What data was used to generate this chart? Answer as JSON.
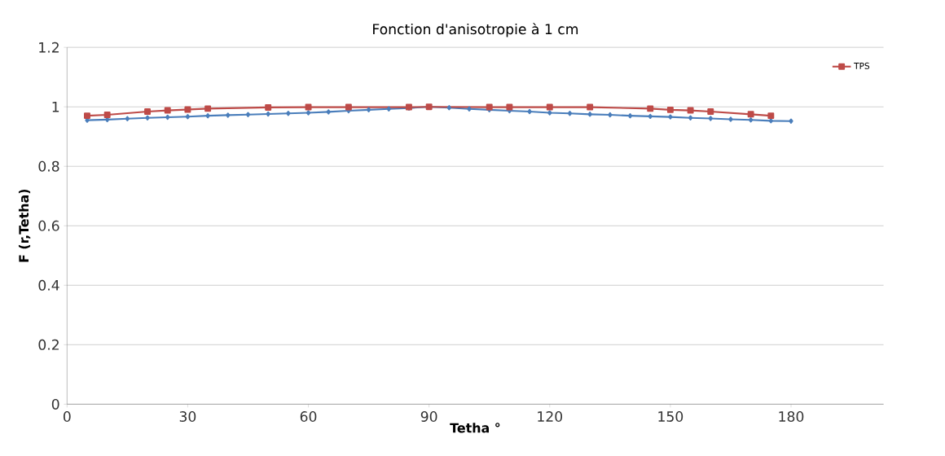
{
  "chart_data": {
    "type": "line",
    "title": "Fonction d'anisotropie à 1 cm",
    "xlabel": "Tetha °",
    "ylabel": "F (r,Tetha)",
    "xlim": [
      0,
      203
    ],
    "xticks": [
      0,
      30,
      60,
      90,
      120,
      150,
      180
    ],
    "ylim": [
      0,
      1.2
    ],
    "yticks": [
      0,
      0.2,
      0.4,
      0.6,
      0.8,
      1,
      1.2
    ],
    "grid": "y",
    "legend": "top right",
    "line_style": "solid",
    "series": [
      {
        "color": "#4a7ebb",
        "marker": "diamond",
        "x": [
          5,
          10,
          15,
          20,
          25,
          30,
          35,
          40,
          45,
          50,
          55,
          60,
          65,
          70,
          75,
          80,
          85,
          90,
          95,
          100,
          105,
          110,
          115,
          120,
          125,
          130,
          135,
          140,
          145,
          150,
          155,
          160,
          165,
          170,
          175,
          180
        ],
        "values": [
          0.955,
          0.957,
          0.96,
          0.963,
          0.965,
          0.967,
          0.97,
          0.972,
          0.974,
          0.976,
          0.978,
          0.98,
          0.983,
          0.987,
          0.99,
          0.993,
          0.996,
          1.0,
          0.997,
          0.993,
          0.99,
          0.987,
          0.984,
          0.98,
          0.978,
          0.975,
          0.973,
          0.97,
          0.968,
          0.966,
          0.963,
          0.961,
          0.958,
          0.956,
          0.953,
          0.952
        ]
      },
      {
        "name": "TPS",
        "color": "#be4b48",
        "marker": "square",
        "x": [
          5,
          10,
          20,
          25,
          30,
          35,
          50,
          60,
          70,
          85,
          90,
          105,
          110,
          120,
          130,
          145,
          150,
          155,
          160,
          170,
          175
        ],
        "values": [
          0.97,
          0.973,
          0.984,
          0.988,
          0.991,
          0.994,
          0.998,
          0.999,
          0.999,
          0.999,
          1.0,
          0.999,
          0.999,
          0.999,
          0.999,
          0.994,
          0.99,
          0.988,
          0.984,
          0.975,
          0.97
        ]
      }
    ]
  }
}
